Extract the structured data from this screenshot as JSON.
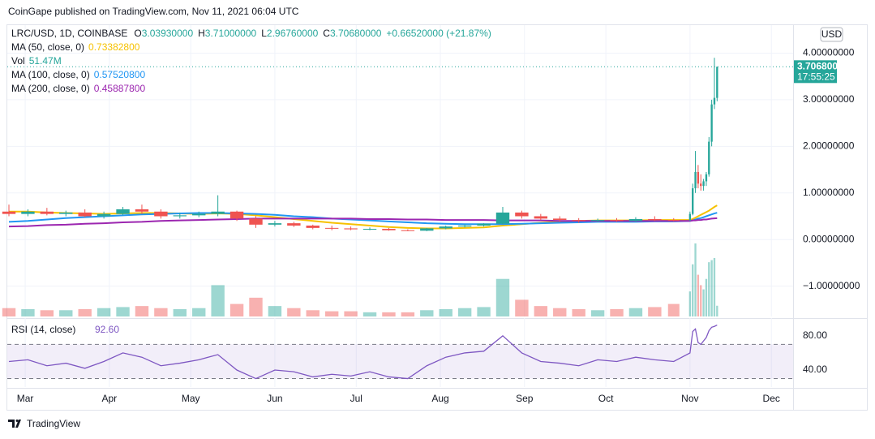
{
  "chart_data": {
    "type": "candlestick",
    "published": "CoinGape published on TradingView.com, Nov 11, 2021 06:04 UTC",
    "symbol": "LRC/USD, 1D, COINBASE",
    "ohlc_legend": [
      {
        "key": "O",
        "text": "3.03930000"
      },
      {
        "key": "H",
        "text": "3.71000000"
      },
      {
        "key": "L",
        "text": "2.96760000"
      },
      {
        "key": "C",
        "text": "3.70680000"
      }
    ],
    "change": "+0.66520000 (+21.87%)",
    "currency": "USD",
    "last_price_label": "3.70680000",
    "countdown": "17:55:25",
    "brand": "TradingView",
    "up_color": "#26a69a",
    "down_color": "#ef5350",
    "grid": true,
    "xlim": [
      -6.6,
      283
    ],
    "xticks": [
      {
        "value": 0,
        "label": "Mar"
      },
      {
        "value": 31,
        "label": "Apr"
      },
      {
        "value": 61,
        "label": "May"
      },
      {
        "value": 92,
        "label": "Jun"
      },
      {
        "value": 122,
        "label": "Jul"
      },
      {
        "value": 153,
        "label": "Aug"
      },
      {
        "value": 184,
        "label": "Sep"
      },
      {
        "value": 214,
        "label": "Oct"
      },
      {
        "value": 245,
        "label": "Nov"
      },
      {
        "value": 275,
        "label": "Dec"
      }
    ],
    "ylim": [
      -1.65,
      4.6
    ],
    "yticks": [
      {
        "value": 4,
        "label": "4.00000000"
      },
      {
        "value": 3,
        "label": "3.00000000"
      },
      {
        "value": 2,
        "label": "2.00000000"
      },
      {
        "value": 1,
        "label": "1.00000000"
      },
      {
        "value": 0,
        "label": "0.00000000"
      },
      {
        "value": -1,
        "label": "−1.00000000"
      }
    ],
    "x": [
      -6,
      1,
      8,
      15,
      22,
      29,
      36,
      43,
      50,
      57,
      64,
      71,
      78,
      85,
      92,
      99,
      106,
      113,
      120,
      127,
      134,
      141,
      148,
      155,
      162,
      169,
      176,
      183,
      190,
      197,
      204,
      211,
      218,
      225,
      232,
      239,
      245,
      246,
      247,
      248,
      249,
      250,
      251,
      252,
      253,
      254,
      255
    ],
    "open": [
      0.6,
      0.55,
      0.6,
      0.55,
      0.58,
      0.5,
      0.55,
      0.65,
      0.6,
      0.5,
      0.52,
      0.55,
      0.6,
      0.45,
      0.32,
      0.35,
      0.3,
      0.25,
      0.24,
      0.22,
      0.23,
      0.2,
      0.19,
      0.24,
      0.28,
      0.3,
      0.34,
      0.58,
      0.5,
      0.45,
      0.42,
      0.4,
      0.42,
      0.4,
      0.44,
      0.42,
      0.41,
      0.55,
      1.1,
      1.45,
      1.2,
      1.15,
      1.25,
      1.4,
      2.1,
      2.9,
      3.0393
    ],
    "high": [
      0.75,
      0.65,
      0.68,
      0.62,
      0.65,
      0.6,
      0.7,
      0.75,
      0.65,
      0.58,
      0.6,
      0.95,
      0.62,
      0.5,
      0.4,
      0.38,
      0.32,
      0.3,
      0.28,
      0.26,
      0.25,
      0.22,
      0.25,
      0.3,
      0.32,
      0.35,
      0.7,
      0.62,
      0.55,
      0.5,
      0.46,
      0.45,
      0.46,
      0.48,
      0.5,
      0.46,
      0.6,
      1.2,
      1.9,
      1.6,
      1.4,
      1.3,
      1.45,
      2.2,
      3.0,
      3.9,
      3.71
    ],
    "low": [
      0.5,
      0.5,
      0.52,
      0.5,
      0.48,
      0.45,
      0.52,
      0.55,
      0.45,
      0.45,
      0.48,
      0.5,
      0.4,
      0.25,
      0.28,
      0.27,
      0.22,
      0.2,
      0.2,
      0.2,
      0.19,
      0.18,
      0.18,
      0.22,
      0.26,
      0.28,
      0.33,
      0.45,
      0.42,
      0.38,
      0.36,
      0.37,
      0.38,
      0.38,
      0.4,
      0.39,
      0.4,
      0.52,
      1.0,
      1.1,
      1.05,
      1.05,
      1.15,
      1.35,
      2.0,
      2.8,
      2.9676
    ],
    "close": [
      0.55,
      0.6,
      0.55,
      0.58,
      0.5,
      0.55,
      0.65,
      0.6,
      0.5,
      0.52,
      0.55,
      0.6,
      0.45,
      0.32,
      0.35,
      0.3,
      0.25,
      0.24,
      0.22,
      0.23,
      0.2,
      0.19,
      0.24,
      0.28,
      0.3,
      0.34,
      0.58,
      0.5,
      0.45,
      0.42,
      0.4,
      0.42,
      0.4,
      0.44,
      0.42,
      0.41,
      0.55,
      1.1,
      1.45,
      1.2,
      1.15,
      1.25,
      1.4,
      2.1,
      2.9,
      3.04,
      3.7068
    ],
    "series": [
      {
        "name": "MA (50, close, 0)",
        "value_label": "0.73382800",
        "color": "#f6c100",
        "values": [
          0.6,
          0.6,
          0.58,
          0.57,
          0.56,
          0.55,
          0.56,
          0.57,
          0.57,
          0.56,
          0.55,
          0.56,
          0.55,
          0.52,
          0.48,
          0.44,
          0.4,
          0.36,
          0.33,
          0.3,
          0.27,
          0.25,
          0.24,
          0.24,
          0.25,
          0.26,
          0.3,
          0.33,
          0.36,
          0.38,
          0.4,
          0.41,
          0.41,
          0.41,
          0.42,
          0.42,
          0.42,
          0.44,
          0.47,
          0.5,
          0.53,
          0.56,
          0.59,
          0.62,
          0.66,
          0.7,
          0.733828
        ]
      },
      {
        "name": "MA (100, close, 0)",
        "value_label": "0.57520800",
        "color": "#2196f3",
        "values": [
          0.38,
          0.4,
          0.43,
          0.46,
          0.48,
          0.5,
          0.52,
          0.54,
          0.55,
          0.56,
          0.57,
          0.57,
          0.56,
          0.55,
          0.53,
          0.5,
          0.48,
          0.45,
          0.43,
          0.41,
          0.39,
          0.37,
          0.35,
          0.34,
          0.33,
          0.33,
          0.33,
          0.34,
          0.35,
          0.36,
          0.37,
          0.38,
          0.38,
          0.38,
          0.39,
          0.39,
          0.4,
          0.41,
          0.43,
          0.45,
          0.46,
          0.48,
          0.5,
          0.52,
          0.54,
          0.56,
          0.575208
        ]
      },
      {
        "name": "MA (200, close, 0)",
        "value_label": "0.45887800",
        "color": "#9c27b0",
        "values": [
          0.28,
          0.29,
          0.31,
          0.32,
          0.34,
          0.35,
          0.37,
          0.38,
          0.4,
          0.41,
          0.42,
          0.43,
          0.44,
          0.45,
          0.45,
          0.45,
          0.45,
          0.45,
          0.45,
          0.44,
          0.44,
          0.43,
          0.43,
          0.42,
          0.42,
          0.42,
          0.41,
          0.41,
          0.41,
          0.4,
          0.4,
          0.4,
          0.4,
          0.4,
          0.4,
          0.4,
          0.4,
          0.41,
          0.41,
          0.42,
          0.42,
          0.43,
          0.43,
          0.44,
          0.45,
          0.455,
          0.458878
        ]
      }
    ],
    "volume": {
      "name": "Vol",
      "value_label": "51.47M",
      "vlim": [
        0,
        350
      ],
      "values": [
        40,
        35,
        30,
        30,
        35,
        40,
        45,
        50,
        40,
        35,
        40,
        150,
        60,
        90,
        50,
        40,
        30,
        25,
        25,
        20,
        20,
        20,
        30,
        35,
        40,
        45,
        180,
        80,
        50,
        40,
        35,
        30,
        35,
        40,
        45,
        60,
        120,
        250,
        350,
        200,
        150,
        130,
        180,
        260,
        270,
        280,
        51.47
      ]
    },
    "rsi": {
      "name": "RSI (14, close)",
      "value_label": "92.60",
      "color": "#7e57c2",
      "ylim": [
        22,
        95
      ],
      "yticks": [
        {
          "value": 80,
          "label": "80.00"
        },
        {
          "value": 40,
          "label": "40.00"
        }
      ],
      "band": [
        30,
        70
      ],
      "values": [
        50,
        52,
        45,
        48,
        42,
        50,
        60,
        55,
        45,
        48,
        52,
        58,
        40,
        30,
        40,
        38,
        32,
        35,
        33,
        38,
        32,
        30,
        45,
        55,
        60,
        62,
        80,
        60,
        50,
        48,
        45,
        52,
        50,
        55,
        52,
        50,
        60,
        85,
        88,
        72,
        70,
        74,
        78,
        86,
        90,
        91,
        92.6
      ]
    }
  }
}
